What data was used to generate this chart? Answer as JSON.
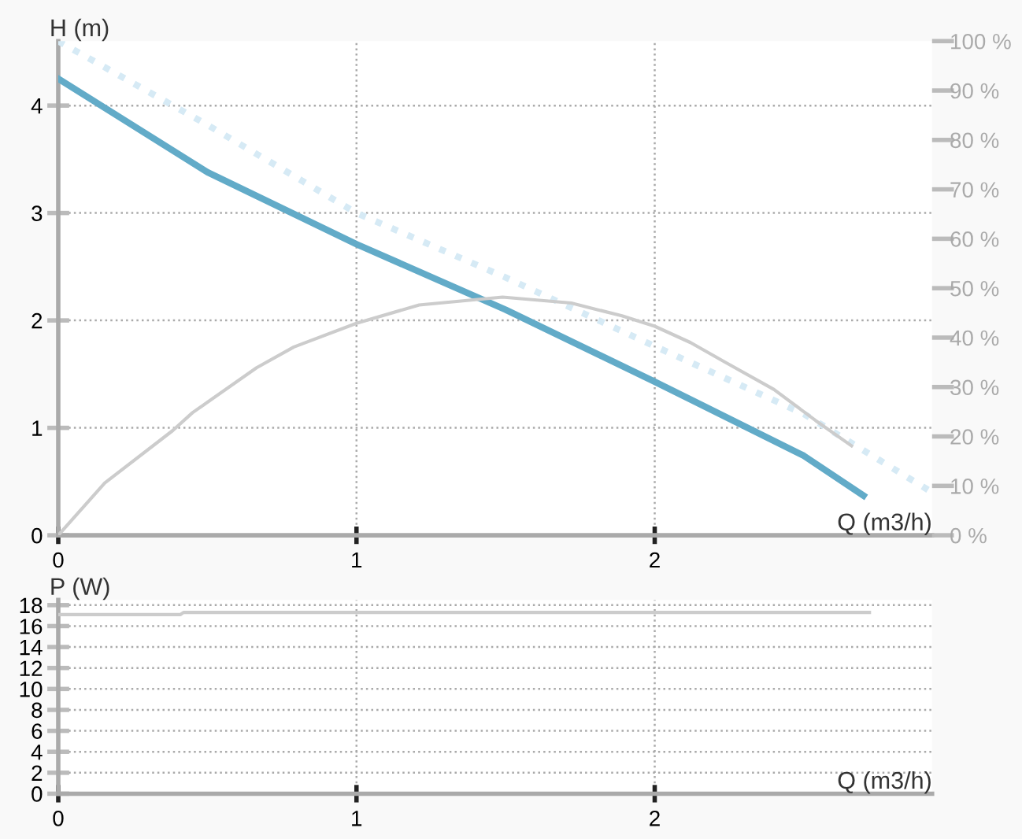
{
  "chart_data": [
    {
      "type": "line",
      "xlabel": "Q (m3/h)",
      "ylabel": "H (m)",
      "xlim": [
        0,
        2.93
      ],
      "xticks": [
        0,
        1,
        2
      ],
      "ylim": [
        0,
        4.6
      ],
      "yticks": [
        0,
        1,
        2,
        3,
        4
      ],
      "y2lim": [
        0,
        100
      ],
      "y2ticks": [
        {
          "value": 0,
          "label": "0 %"
        },
        {
          "value": 10,
          "label": "10 %"
        },
        {
          "value": 20,
          "label": "20 %"
        },
        {
          "value": 30,
          "label": "30 %"
        },
        {
          "value": 40,
          "label": "40 %"
        },
        {
          "value": 50,
          "label": "50 %"
        },
        {
          "value": 60,
          "label": "60 %"
        },
        {
          "value": 70,
          "label": "70 %"
        },
        {
          "value": 80,
          "label": "80 %"
        },
        {
          "value": 90,
          "label": "90 %"
        },
        {
          "value": 100,
          "label": "100 %"
        }
      ],
      "grid": true,
      "marker": "none",
      "series": [
        {
          "color": "#d6eaf5",
          "line_style": "dotted",
          "x": [
            0,
            0.5,
            1,
            1.5,
            2,
            2.5,
            2.93
          ],
          "values": [
            4.6,
            3.82,
            3.0,
            2.4,
            1.76,
            1.13,
            0.4
          ]
        },
        {
          "color": "#cccccc",
          "axis": "y2",
          "line_style": "solid",
          "x": [
            0,
            0.156,
            0.384,
            0.45,
            0.665,
            0.79,
            1.0,
            1.21,
            1.49,
            1.72,
            1.89,
            2.0,
            2.12,
            2.24,
            2.4,
            2.54,
            2.66
          ],
          "values": [
            0,
            10.6,
            21.2,
            24.8,
            33.9,
            38.1,
            42.9,
            46.6,
            48.2,
            47,
            44.4,
            42.3,
            39,
            34.9,
            29.5,
            23.2,
            18.1
          ]
        },
        {
          "color": "#62abc8",
          "line_style": "solid",
          "x": [
            0,
            0.5,
            1,
            1.5,
            2,
            2.5,
            2.7
          ],
          "values": [
            4.25,
            3.38,
            2.71,
            2.1,
            1.43,
            0.74,
            0.37
          ]
        }
      ]
    },
    {
      "type": "line",
      "xlabel": "Q (m3/h)",
      "ylabel": "P (W)",
      "xlim": [
        0,
        2.93
      ],
      "xticks": [
        0,
        1,
        2
      ],
      "ylim": [
        0,
        18.5
      ],
      "yticks": [
        0,
        2,
        4,
        6,
        8,
        10,
        12,
        14,
        16,
        18
      ],
      "grid": true,
      "marker": "none",
      "series": [
        {
          "color": "#cccccc",
          "line_style": "solid",
          "x": [
            0,
            0.41,
            0.42,
            2.72
          ],
          "values": [
            17.1,
            17.1,
            17.3,
            17.3
          ]
        }
      ]
    }
  ]
}
